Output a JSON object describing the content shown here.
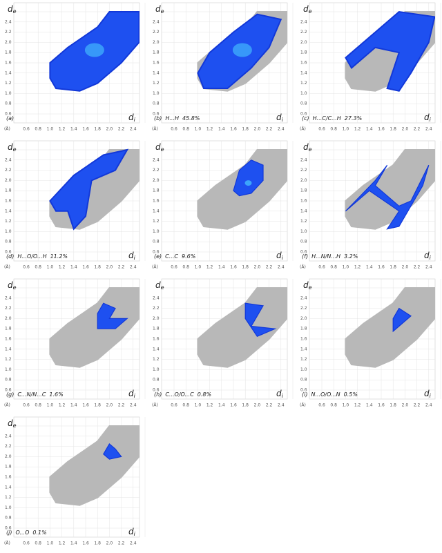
{
  "axes": {
    "y_title": "d",
    "y_sub": "e",
    "x_title": "d",
    "x_sub": "i",
    "unit": "(Å)",
    "ticks": [
      "0.6",
      "0.8",
      "1.0",
      "1.2",
      "1.4",
      "1.6",
      "1.8",
      "2.0",
      "2.2",
      "2.4"
    ]
  },
  "panels": [
    {
      "label": "(a)"
    },
    {
      "label": "(b)",
      "contact": "H...H",
      "percent": "45.8%"
    },
    {
      "label": "(c)",
      "contact": "H...C/C...H",
      "percent": "27.3%"
    },
    {
      "label": "(d)",
      "contact": "H...O/O...H",
      "percent": "11.2%"
    },
    {
      "label": "(e)",
      "contact": "C...C",
      "percent": "9.6%"
    },
    {
      "label": "(f)",
      "contact": "H...N/N...H",
      "percent": "3.2%"
    },
    {
      "label": "(g)",
      "contact": "C...N/N...C",
      "percent": "1.6%"
    },
    {
      "label": "(h)",
      "contact": "C...O/O...C",
      "percent": "0.8%"
    },
    {
      "label": "(i)",
      "contact": "N...O/O...N",
      "percent": "0.5%"
    },
    {
      "label": "(j)",
      "contact": "O...O",
      "percent": "0.1%"
    }
  ]
}
